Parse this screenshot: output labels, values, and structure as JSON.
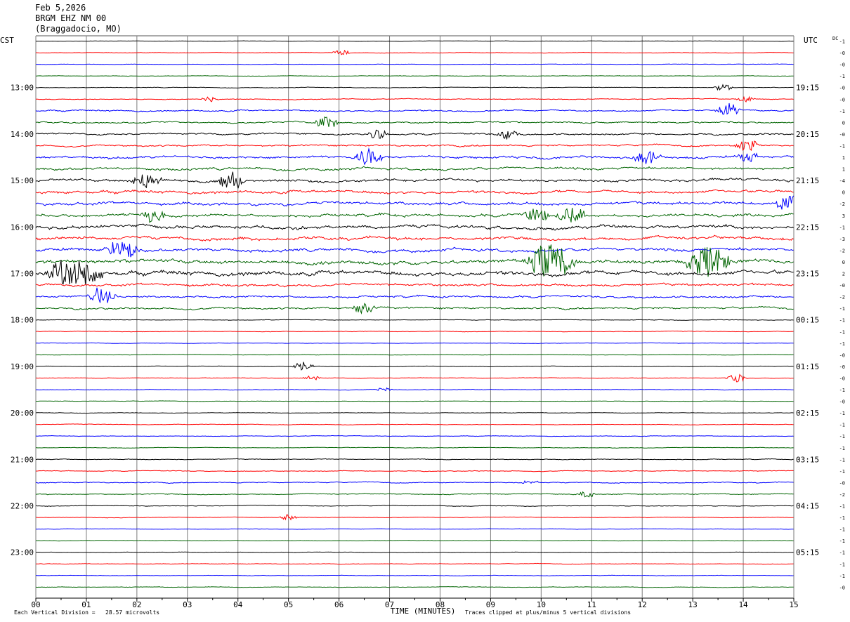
{
  "header": {
    "date": "Feb 5,2026",
    "station": "BRGM EHZ NM 00",
    "location": "(Braggadocio, MO)"
  },
  "chart_data": {
    "type": "line",
    "title": "BRGM EHZ NM 00",
    "left_axis_label": "CST",
    "right_axis_label": "UTC",
    "xlabel": "TIME (MINUTES)",
    "xlim": [
      0,
      15
    ],
    "x_ticks": [
      "00",
      "01",
      "02",
      "03",
      "04",
      "05",
      "06",
      "07",
      "08",
      "09",
      "10",
      "11",
      "12",
      "13",
      "14",
      "15"
    ],
    "left_hour_labels": [
      "13:00",
      "14:00",
      "15:00",
      "16:00",
      "17:00",
      "18:00",
      "19:00",
      "20:00",
      "21:00",
      "22:00",
      "23:00"
    ],
    "right_hour_labels": [
      "19:15",
      "20:15",
      "21:15",
      "22:15",
      "23:15",
      "00:15",
      "01:15",
      "02:15",
      "03:15",
      "04:15",
      "05:15"
    ],
    "first_labeled_trace_index": 4,
    "traces_per_hour": 4,
    "trace_colors": [
      "#000000",
      "#ff0000",
      "#0000ff",
      "#006400"
    ],
    "dc_header": "DC",
    "dc_offsets": [
      "-1",
      "-0",
      "-0",
      "-1",
      "-0",
      "-0",
      "-1",
      "0",
      "-0",
      "-1",
      "1",
      "1",
      "-4",
      "0",
      "-2",
      "3",
      "-1",
      "-3",
      "-2",
      "0",
      "2",
      "-0",
      "-2",
      "-1",
      "-1",
      "-1",
      "-1",
      "-0",
      "-0",
      "-0",
      "-1",
      "-0",
      "-1",
      "-1",
      "-1",
      "-1",
      "-1",
      "-1",
      "-0",
      "-2",
      "-1",
      "-1",
      "-1",
      "-1",
      "-1",
      "-1",
      "-1",
      "-0"
    ],
    "trace_activity": [
      0.2,
      0.25,
      0.25,
      0.25,
      0.3,
      0.45,
      0.8,
      0.8,
      0.9,
      0.9,
      1.3,
      1.3,
      1.4,
      1.5,
      1.6,
      1.5,
      1.8,
      1.7,
      1.6,
      2.0,
      2.2,
      1.3,
      1.1,
      1.0,
      0.3,
      0.3,
      0.25,
      0.25,
      0.3,
      0.3,
      0.3,
      0.25,
      0.25,
      0.3,
      0.3,
      0.3,
      0.4,
      0.4,
      0.5,
      0.5,
      0.4,
      0.3,
      0.25,
      0.25,
      0.25,
      0.3,
      0.25,
      0.3
    ],
    "bursts": [
      {
        "trace": 1,
        "minute": 6.05,
        "size": 4
      },
      {
        "trace": 4,
        "minute": 13.6,
        "size": 5
      },
      {
        "trace": 5,
        "minute": 3.45,
        "size": 4
      },
      {
        "trace": 5,
        "minute": 14.05,
        "size": 4
      },
      {
        "trace": 6,
        "minute": 13.7,
        "size": 10
      },
      {
        "trace": 7,
        "minute": 5.75,
        "size": 8
      },
      {
        "trace": 8,
        "minute": 6.8,
        "size": 7
      },
      {
        "trace": 8,
        "minute": 9.35,
        "size": 7
      },
      {
        "trace": 9,
        "minute": 14.1,
        "size": 9
      },
      {
        "trace": 10,
        "minute": 6.6,
        "size": 12
      },
      {
        "trace": 10,
        "minute": 12.1,
        "size": 10
      },
      {
        "trace": 10,
        "minute": 14.1,
        "size": 8
      },
      {
        "trace": 12,
        "minute": 2.2,
        "size": 12
      },
      {
        "trace": 12,
        "minute": 3.9,
        "size": 13
      },
      {
        "trace": 14,
        "minute": 14.9,
        "size": 12
      },
      {
        "trace": 15,
        "minute": 2.3,
        "size": 10
      },
      {
        "trace": 15,
        "minute": 9.9,
        "size": 10
      },
      {
        "trace": 15,
        "minute": 10.6,
        "size": 12
      },
      {
        "trace": 18,
        "minute": 1.7,
        "size": 14
      },
      {
        "trace": 19,
        "minute": 10.2,
        "size": 26
      },
      {
        "trace": 19,
        "minute": 13.3,
        "size": 22
      },
      {
        "trace": 20,
        "minute": 0.6,
        "size": 18
      },
      {
        "trace": 20,
        "minute": 1.0,
        "size": 16
      },
      {
        "trace": 22,
        "minute": 1.3,
        "size": 12
      },
      {
        "trace": 23,
        "minute": 6.5,
        "size": 8
      },
      {
        "trace": 28,
        "minute": 5.3,
        "size": 6
      },
      {
        "trace": 29,
        "minute": 5.45,
        "size": 4
      },
      {
        "trace": 29,
        "minute": 13.85,
        "size": 6
      },
      {
        "trace": 30,
        "minute": 6.9,
        "size": 3
      },
      {
        "trace": 38,
        "minute": 9.8,
        "size": 4
      },
      {
        "trace": 39,
        "minute": 10.9,
        "size": 5
      },
      {
        "trace": 41,
        "minute": 5.0,
        "size": 4
      }
    ]
  },
  "footer": {
    "scale_note": "Each Vertical Division =   28.57 microvolts",
    "clip_note": "Traces clipped at plus/minus 5 vertical divisions"
  }
}
